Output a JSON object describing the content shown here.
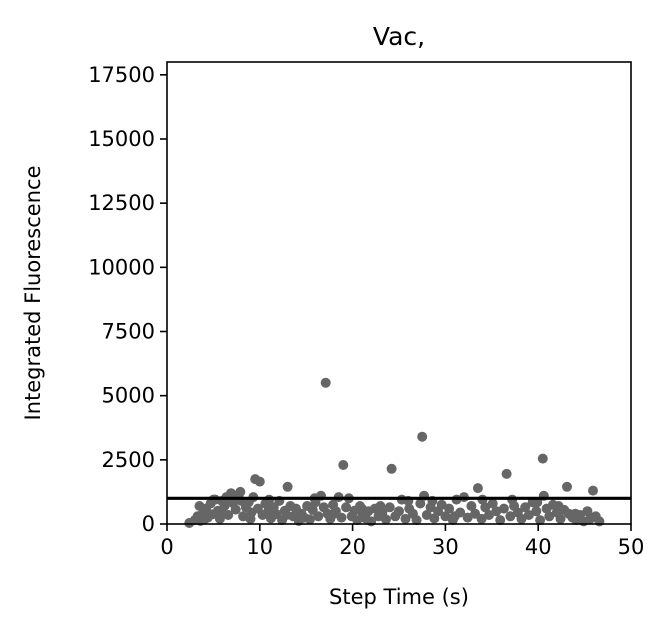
{
  "chart_data": {
    "type": "scatter",
    "title": "Vac,",
    "xlabel": "Step Time (s)",
    "ylabel": "Integrated Fluorescence",
    "xlim": [
      0,
      50
    ],
    "ylim": [
      0,
      18000
    ],
    "xticks": [
      0,
      10,
      20,
      30,
      40,
      50
    ],
    "yticks": [
      0,
      2500,
      5000,
      7500,
      10000,
      12500,
      15000,
      17500
    ],
    "threshold_line": 1000,
    "grid": false,
    "legend": "none",
    "colors": {
      "points": "#666666",
      "threshold": "#000000",
      "axes": "#000000"
    },
    "points": [
      [
        2.4,
        40
      ],
      [
        3.0,
        150
      ],
      [
        3.3,
        300
      ],
      [
        3.6,
        120
      ],
      [
        3.9,
        450
      ],
      [
        4.2,
        600
      ],
      [
        4.4,
        250
      ],
      [
        4.7,
        800
      ],
      [
        4.9,
        380
      ],
      [
        5.2,
        950
      ],
      [
        5.5,
        520
      ],
      [
        5.7,
        200
      ],
      [
        5.9,
        900
      ],
      [
        6.2,
        700
      ],
      [
        6.4,
        1050
      ],
      [
        6.6,
        350
      ],
      [
        6.9,
        1200
      ],
      [
        7.1,
        820
      ],
      [
        7.4,
        560
      ],
      [
        7.7,
        1100
      ],
      [
        7.9,
        1250
      ],
      [
        8.2,
        300
      ],
      [
        8.5,
        650
      ],
      [
        8.8,
        850
      ],
      [
        9.1,
        450
      ],
      [
        9.3,
        1050
      ],
      [
        9.5,
        1750
      ],
      [
        9.8,
        600
      ],
      [
        10.0,
        1650
      ],
      [
        10.3,
        350
      ],
      [
        10.6,
        800
      ],
      [
        10.9,
        500
      ],
      [
        11.2,
        220
      ],
      [
        11.5,
        650
      ],
      [
        11.8,
        380
      ],
      [
        12.1,
        900
      ],
      [
        12.4,
        150
      ],
      [
        12.7,
        520
      ],
      [
        13.0,
        1450
      ],
      [
        13.3,
        700
      ],
      [
        13.6,
        300
      ],
      [
        13.9,
        600
      ],
      [
        14.2,
        120
      ],
      [
        14.5,
        400
      ],
      [
        14.8,
        250
      ],
      [
        15.1,
        700
      ],
      [
        15.4,
        180
      ],
      [
        15.7,
        550
      ],
      [
        16.0,
        850
      ],
      [
        16.3,
        300
      ],
      [
        16.6,
        1100
      ],
      [
        16.9,
        650
      ],
      [
        17.1,
        5500
      ],
      [
        17.3,
        400
      ],
      [
        17.6,
        200
      ],
      [
        17.9,
        750
      ],
      [
        18.2,
        500
      ],
      [
        18.5,
        1050
      ],
      [
        18.8,
        250
      ],
      [
        19.0,
        2300
      ],
      [
        19.3,
        650
      ],
      [
        19.6,
        1000
      ],
      [
        19.9,
        300
      ],
      [
        20.2,
        520
      ],
      [
        20.5,
        150
      ],
      [
        20.8,
        700
      ],
      [
        21.1,
        400
      ],
      [
        21.4,
        220
      ],
      [
        21.7,
        500
      ],
      [
        22.0,
        100
      ],
      [
        22.4,
        600
      ],
      [
        22.8,
        300
      ],
      [
        23.2,
        450
      ],
      [
        23.6,
        180
      ],
      [
        24.0,
        650
      ],
      [
        24.2,
        2150
      ],
      [
        24.6,
        300
      ],
      [
        25.0,
        500
      ],
      [
        25.3,
        950
      ],
      [
        25.7,
        200
      ],
      [
        26.1,
        600
      ],
      [
        26.5,
        400
      ],
      [
        26.9,
        150
      ],
      [
        27.3,
        800
      ],
      [
        27.5,
        3400
      ],
      [
        27.7,
        1100
      ],
      [
        28.0,
        350
      ],
      [
        28.4,
        650
      ],
      [
        28.8,
        220
      ],
      [
        29.2,
        500
      ],
      [
        29.6,
        750
      ],
      [
        30.0,
        300
      ],
      [
        30.4,
        600
      ],
      [
        30.8,
        150
      ],
      [
        31.2,
        950
      ],
      [
        31.6,
        450
      ],
      [
        32.0,
        1050
      ],
      [
        32.4,
        250
      ],
      [
        32.8,
        700
      ],
      [
        33.2,
        400
      ],
      [
        33.5,
        1400
      ],
      [
        33.9,
        200
      ],
      [
        34.3,
        650
      ],
      [
        34.7,
        350
      ],
      [
        35.1,
        800
      ],
      [
        35.5,
        500
      ],
      [
        35.9,
        150
      ],
      [
        36.3,
        600
      ],
      [
        36.6,
        1950
      ],
      [
        37.0,
        300
      ],
      [
        37.4,
        700
      ],
      [
        37.8,
        450
      ],
      [
        38.2,
        200
      ],
      [
        38.6,
        650
      ],
      [
        39.0,
        350
      ],
      [
        39.4,
        850
      ],
      [
        39.8,
        500
      ],
      [
        40.2,
        150
      ],
      [
        40.5,
        2550
      ],
      [
        40.6,
        1100
      ],
      [
        40.9,
        600
      ],
      [
        41.2,
        300
      ],
      [
        41.6,
        750
      ],
      [
        42.0,
        450
      ],
      [
        42.4,
        200
      ],
      [
        42.8,
        550
      ],
      [
        43.1,
        1450
      ],
      [
        43.3,
        400
      ],
      [
        43.7,
        250
      ],
      [
        44.1,
        150
      ],
      [
        44.5,
        350
      ],
      [
        44.9,
        100
      ],
      [
        45.3,
        500
      ],
      [
        45.6,
        200
      ],
      [
        45.9,
        1300
      ],
      [
        46.2,
        300
      ],
      [
        46.6,
        100
      ],
      [
        3.5,
        700
      ],
      [
        4.1,
        200
      ],
      [
        5.0,
        950
      ],
      [
        6.0,
        400
      ],
      [
        6.8,
        950
      ],
      [
        8.0,
        900
      ],
      [
        9.0,
        200
      ],
      [
        11.0,
        950
      ],
      [
        12.9,
        350
      ],
      [
        15.9,
        1000
      ],
      [
        18.0,
        400
      ],
      [
        21.0,
        600
      ],
      [
        23.0,
        700
      ],
      [
        26.0,
        900
      ],
      [
        28.6,
        900
      ],
      [
        31.0,
        300
      ],
      [
        34.0,
        950
      ],
      [
        37.2,
        950
      ],
      [
        39.9,
        850
      ],
      [
        42.2,
        700
      ],
      [
        44.0,
        400
      ]
    ]
  }
}
